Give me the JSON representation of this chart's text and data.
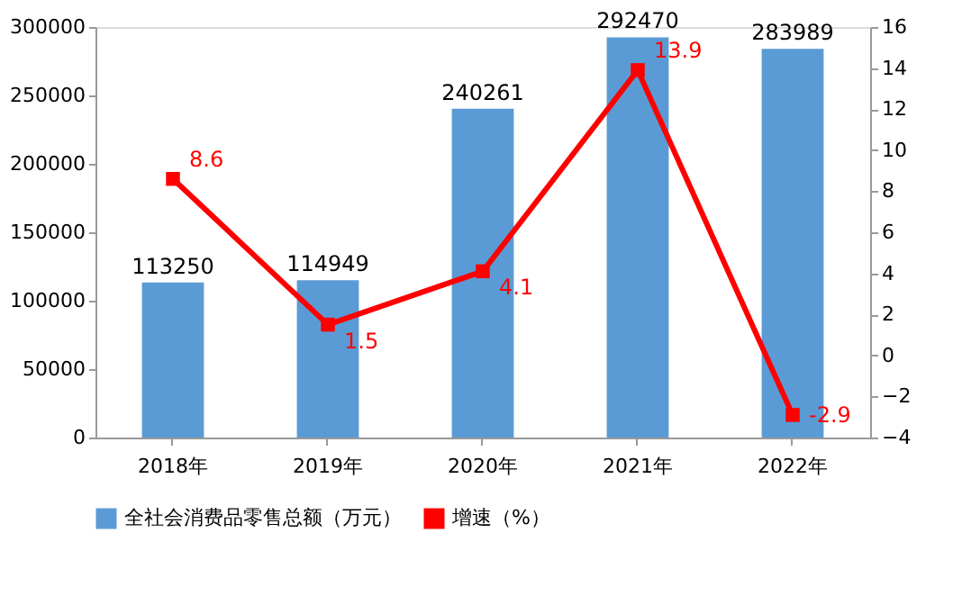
{
  "chart_data": {
    "type": "bar",
    "categories": [
      "2018年",
      "2019年",
      "2020年",
      "2021年",
      "2022年"
    ],
    "series": [
      {
        "name": "全社会消费品零售总额（万元）",
        "color": "#5b9bd5",
        "values": [
          113250,
          114949,
          240261,
          292470,
          283989
        ]
      },
      {
        "name": "增速（%）",
        "type": "line",
        "axis": "y2",
        "color": "#ff0000",
        "marker": "square",
        "values": [
          8.6,
          1.5,
          4.1,
          13.9,
          -2.9
        ]
      }
    ],
    "ylim": [
      0,
      300000
    ],
    "yticks": [
      0,
      50000,
      100000,
      150000,
      200000,
      250000,
      300000
    ],
    "y2lim": [
      -4,
      16
    ],
    "y2ticks": [
      -4,
      -2,
      0,
      2,
      4,
      6,
      8,
      10,
      12,
      14,
      16
    ],
    "data_labels": true,
    "legend": "bottom",
    "grid": false
  }
}
